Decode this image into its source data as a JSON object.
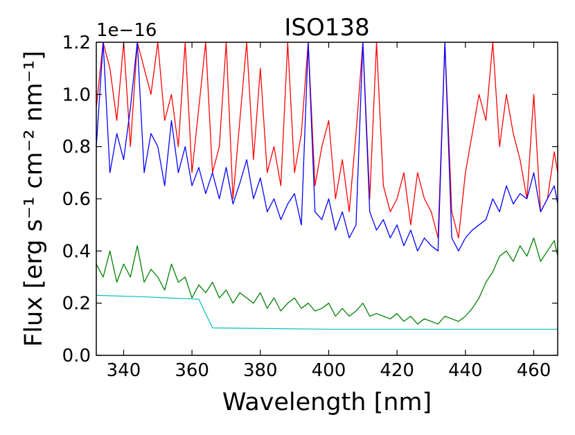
{
  "chart_data": {
    "type": "line",
    "title": "ISO138",
    "xlabel": "Wavelength [nm]",
    "ylabel": "Flux [erg s⁻¹ cm⁻² nm⁻¹]",
    "scale_label": "1e−16",
    "xlim": [
      332,
      467
    ],
    "ylim": [
      0.0,
      1.2
    ],
    "x_ticks": [
      340,
      360,
      380,
      400,
      420,
      440,
      460
    ],
    "x_tick_labels": [
      "340",
      "360",
      "380",
      "400",
      "420",
      "440",
      "460"
    ],
    "y_ticks": [
      0.0,
      0.2,
      0.4,
      0.6,
      0.8,
      1.0,
      1.2
    ],
    "y_tick_labels": [
      "0.0",
      "0.2",
      "0.4",
      "0.6",
      "0.8",
      "1.0",
      "1.2"
    ],
    "grid": false,
    "series": [
      {
        "name": "red",
        "color": "#ff0000",
        "x": [
          332,
          334,
          336,
          338,
          340,
          342,
          344,
          346,
          348,
          350,
          352,
          354,
          356,
          358,
          360,
          362,
          364,
          366,
          368,
          370,
          372,
          374,
          376,
          378,
          380,
          382,
          384,
          386,
          388,
          390,
          392,
          394,
          396,
          398,
          400,
          402,
          404,
          406,
          408,
          410,
          412,
          414,
          416,
          418,
          420,
          422,
          424,
          426,
          428,
          430,
          432,
          434,
          436,
          438,
          440,
          442,
          444,
          446,
          448,
          450,
          452,
          454,
          456,
          458,
          460,
          462,
          464,
          466,
          467
        ],
        "values": [
          0.95,
          1.2,
          1.1,
          0.9,
          1.2,
          0.8,
          1.2,
          1.1,
          1.0,
          1.2,
          0.9,
          1.0,
          0.8,
          1.2,
          0.7,
          0.95,
          1.2,
          0.7,
          0.8,
          1.2,
          0.6,
          0.9,
          1.2,
          0.75,
          1.1,
          0.7,
          0.8,
          0.65,
          1.2,
          0.7,
          0.85,
          1.2,
          0.65,
          0.8,
          0.9,
          0.6,
          0.75,
          0.55,
          0.85,
          1.2,
          0.6,
          1.2,
          0.65,
          0.55,
          0.6,
          0.7,
          0.5,
          0.7,
          0.6,
          0.55,
          0.45,
          1.2,
          0.55,
          0.45,
          0.7,
          0.85,
          1.0,
          0.9,
          1.2,
          0.8,
          1.0,
          0.85,
          0.75,
          0.6,
          1.0,
          0.55,
          0.6,
          0.78,
          0.7
        ]
      },
      {
        "name": "blue",
        "color": "#0000ff",
        "x": [
          332,
          334,
          336,
          338,
          340,
          342,
          344,
          346,
          348,
          350,
          352,
          354,
          356,
          358,
          360,
          362,
          364,
          366,
          368,
          370,
          372,
          374,
          376,
          378,
          380,
          382,
          384,
          386,
          388,
          390,
          392,
          394,
          396,
          398,
          400,
          402,
          404,
          406,
          408,
          410,
          412,
          414,
          416,
          418,
          420,
          422,
          424,
          426,
          428,
          430,
          432,
          434,
          436,
          438,
          440,
          442,
          444,
          446,
          448,
          450,
          452,
          454,
          456,
          458,
          460,
          462,
          464,
          466,
          467
        ],
        "values": [
          0.8,
          1.2,
          0.7,
          0.85,
          0.75,
          0.95,
          1.2,
          0.7,
          0.85,
          0.8,
          0.65,
          0.9,
          0.7,
          0.8,
          0.65,
          0.72,
          0.62,
          0.7,
          0.6,
          0.72,
          0.58,
          0.66,
          0.75,
          0.6,
          0.68,
          0.55,
          0.6,
          0.52,
          0.58,
          0.62,
          0.5,
          1.2,
          0.55,
          0.52,
          0.6,
          0.48,
          0.55,
          0.45,
          0.5,
          1.2,
          0.55,
          0.48,
          0.52,
          0.45,
          0.5,
          0.42,
          0.48,
          0.4,
          0.45,
          0.42,
          0.4,
          1.2,
          0.45,
          0.4,
          0.45,
          0.48,
          0.5,
          0.52,
          0.6,
          0.55,
          0.65,
          0.58,
          0.62,
          0.6,
          0.7,
          0.55,
          0.6,
          0.65,
          0.58
        ]
      },
      {
        "name": "green",
        "color": "#008000",
        "x": [
          332,
          334,
          336,
          338,
          340,
          342,
          344,
          346,
          348,
          350,
          352,
          354,
          356,
          358,
          360,
          362,
          364,
          366,
          368,
          370,
          372,
          374,
          376,
          378,
          380,
          382,
          384,
          386,
          388,
          390,
          392,
          394,
          396,
          398,
          400,
          402,
          404,
          406,
          408,
          410,
          412,
          414,
          416,
          418,
          420,
          422,
          424,
          426,
          428,
          430,
          432,
          434,
          436,
          438,
          440,
          442,
          444,
          446,
          448,
          450,
          452,
          454,
          456,
          458,
          460,
          462,
          464,
          466,
          467
        ],
        "values": [
          0.35,
          0.3,
          0.4,
          0.28,
          0.35,
          0.3,
          0.42,
          0.28,
          0.33,
          0.3,
          0.25,
          0.35,
          0.28,
          0.3,
          0.22,
          0.27,
          0.24,
          0.28,
          0.22,
          0.25,
          0.2,
          0.24,
          0.22,
          0.2,
          0.24,
          0.18,
          0.22,
          0.17,
          0.2,
          0.22,
          0.18,
          0.2,
          0.17,
          0.18,
          0.2,
          0.15,
          0.18,
          0.15,
          0.17,
          0.2,
          0.15,
          0.16,
          0.15,
          0.14,
          0.16,
          0.13,
          0.15,
          0.12,
          0.14,
          0.13,
          0.12,
          0.15,
          0.14,
          0.13,
          0.15,
          0.18,
          0.22,
          0.28,
          0.32,
          0.38,
          0.4,
          0.36,
          0.42,
          0.38,
          0.45,
          0.36,
          0.4,
          0.44,
          0.38
        ]
      },
      {
        "name": "cyan",
        "color": "#00bfbf",
        "x": [
          332,
          345,
          362,
          366,
          400,
          440,
          467
        ],
        "values": [
          0.23,
          0.225,
          0.215,
          0.105,
          0.1,
          0.1,
          0.1
        ]
      }
    ]
  }
}
